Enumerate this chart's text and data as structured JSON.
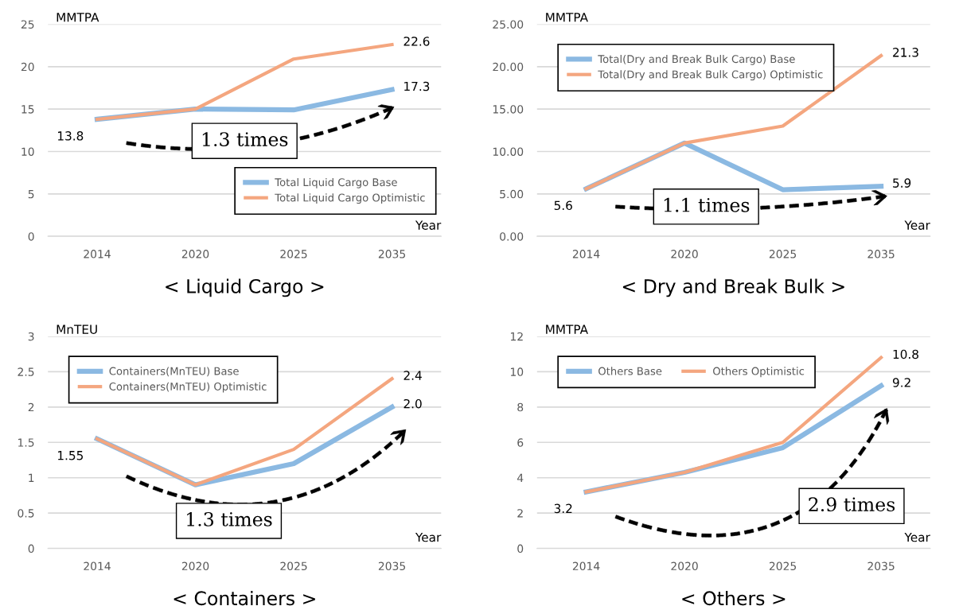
{
  "chart_data": [
    {
      "type": "line",
      "title": "< Liquid Cargo >",
      "ylabel": "MMTPA",
      "xlabel": "Year",
      "categories": [
        "2014",
        "2020",
        "2025",
        "2035"
      ],
      "series": [
        {
          "name": "Total Liquid Cargo Base",
          "color": "#8bb9e2",
          "values": [
            13.8,
            15.0,
            14.9,
            17.3
          ],
          "value_labels": [
            "13.8",
            null,
            null,
            "17.3"
          ]
        },
        {
          "name": "Total Liquid Cargo Optimistic",
          "color": "#f4a67f",
          "values": [
            13.8,
            15.0,
            20.9,
            22.6
          ],
          "value_labels": [
            null,
            null,
            null,
            "22.6"
          ]
        }
      ],
      "ylim": [
        0,
        25
      ],
      "yticks": [
        0,
        5,
        10,
        15,
        20,
        25
      ],
      "grid": "y",
      "legend": "bottom right",
      "annotations": [
        "1.3 times"
      ]
    },
    {
      "type": "line",
      "title": "< Dry and Break Bulk >",
      "ylabel": "MMTPA",
      "xlabel": "Year",
      "categories": [
        "2014",
        "2020",
        "2025",
        "2035"
      ],
      "series": [
        {
          "name": "Total(Dry and Break Bulk Cargo) Base",
          "color": "#8bb9e2",
          "values": [
            5.6,
            11.0,
            5.5,
            5.9
          ],
          "value_labels": [
            "5.6",
            null,
            null,
            "5.9"
          ]
        },
        {
          "name": "Total(Dry and Break Bulk Cargo) Optimistic",
          "color": "#f4a67f",
          "values": [
            5.6,
            11.0,
            13.0,
            21.3
          ],
          "value_labels": [
            null,
            null,
            null,
            "21.3"
          ]
        }
      ],
      "ylim": [
        0,
        25
      ],
      "yticks": [
        {
          "value": 0,
          "label": "0.00"
        },
        {
          "value": 5,
          "label": "5.00"
        },
        {
          "value": 10,
          "label": "10.00"
        },
        {
          "value": 15,
          "label": "15.00"
        },
        {
          "value": 20,
          "label": "20.00"
        },
        {
          "value": 25,
          "label": "25.00"
        }
      ],
      "grid": "y",
      "legend": "top left",
      "annotations": [
        "1.1 times"
      ]
    },
    {
      "type": "line",
      "title": "< Containers >",
      "ylabel": "MnTEU",
      "xlabel": "Year",
      "categories": [
        "2014",
        "2020",
        "2025",
        "2035"
      ],
      "series": [
        {
          "name": "Containers(MnTEU) Base",
          "color": "#8bb9e2",
          "values": [
            1.55,
            0.9,
            1.2,
            2.0
          ],
          "value_labels": [
            "1.55",
            null,
            null,
            "2.0"
          ]
        },
        {
          "name": "Containers(MnTEU) Optimistic",
          "color": "#f4a67f",
          "values": [
            1.55,
            0.9,
            1.4,
            2.4
          ],
          "value_labels": [
            null,
            null,
            null,
            "2.4"
          ]
        }
      ],
      "ylim": [
        0,
        3
      ],
      "yticks": [
        0,
        0.5,
        1,
        1.5,
        2,
        2.5,
        3
      ],
      "grid": "y",
      "legend": "top left",
      "annotations": [
        "1.3 times"
      ]
    },
    {
      "type": "line",
      "title": "< Others >",
      "ylabel": "MMTPA",
      "xlabel": "Year",
      "categories": [
        "2014",
        "2020",
        "2025",
        "2035"
      ],
      "series": [
        {
          "name": "Others Base",
          "color": "#8bb9e2",
          "values": [
            3.2,
            4.3,
            5.7,
            9.2
          ],
          "value_labels": [
            "3.2",
            null,
            null,
            "9.2"
          ]
        },
        {
          "name": "Others Optimistic",
          "color": "#f4a67f",
          "values": [
            3.2,
            4.3,
            6.0,
            10.8
          ],
          "value_labels": [
            null,
            null,
            null,
            "10.8"
          ]
        }
      ],
      "ylim": [
        0,
        12
      ],
      "yticks": [
        0,
        2,
        4,
        6,
        8,
        10,
        12
      ],
      "grid": "y",
      "legend": "top",
      "annotations": [
        "2.9 times"
      ]
    }
  ]
}
